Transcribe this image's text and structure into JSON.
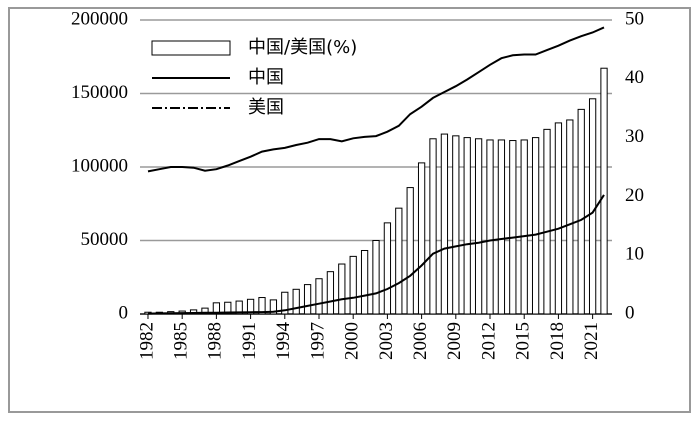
{
  "chart_data": {
    "type": "bar_line",
    "x": [
      1982,
      1983,
      1984,
      1985,
      1986,
      1987,
      1988,
      1989,
      1990,
      1991,
      1992,
      1993,
      1994,
      1995,
      1996,
      1997,
      1998,
      1999,
      2000,
      2001,
      2002,
      2003,
      2004,
      2005,
      2006,
      2007,
      2008,
      2009,
      2010,
      2011,
      2012,
      2013,
      2014,
      2015,
      2016,
      2017,
      2018,
      2019,
      2020,
      2021,
      2022
    ],
    "xlim": [
      1981.3,
      2022.7
    ],
    "xticks": [
      1982,
      1985,
      1988,
      1991,
      1994,
      1997,
      2000,
      2003,
      2006,
      2009,
      2012,
      2015,
      2018,
      2021
    ],
    "ylim": [
      0,
      200000
    ],
    "yticks": [
      0,
      50000,
      100000,
      150000,
      200000
    ],
    "y2lim": [
      0,
      50
    ],
    "y2ticks": [
      0,
      10,
      20,
      30,
      40,
      50
    ],
    "grid": true,
    "legend": "upper left",
    "series": [
      {
        "name": "中国/美国(%)",
        "kind": "bar",
        "axis": "y2",
        "color": "#000000",
        "values": [
          0.3,
          0.3,
          0.4,
          0.5,
          0.7,
          1.0,
          1.9,
          2.0,
          2.2,
          2.5,
          2.8,
          2.4,
          3.7,
          4.2,
          5.0,
          6.0,
          7.2,
          8.5,
          9.8,
          10.8,
          12.5,
          15.5,
          18.0,
          21.5,
          25.7,
          29.8,
          30.6,
          30.3,
          30.0,
          29.8,
          29.6,
          29.6,
          29.5,
          29.6,
          30.0,
          31.4,
          32.5,
          33.0,
          34.8,
          36.6,
          41.8
        ]
      },
      {
        "name": "中国",
        "kind": "line",
        "color": "#000000",
        "values": [
          300,
          400,
          500,
          600,
          700,
          800,
          900,
          1000,
          1100,
          1200,
          1300,
          1500,
          2500,
          4000,
          5500,
          7000,
          8500,
          10000,
          11000,
          12500,
          14000,
          17000,
          21000,
          26000,
          33000,
          41000,
          44500,
          46000,
          47500,
          48500,
          50000,
          51000,
          52000,
          53000,
          54000,
          56000,
          58000,
          61000,
          64000,
          69000,
          81000
        ]
      },
      {
        "name": "美国",
        "kind": "line",
        "color": "#000000",
        "dash": "10,3,2,3",
        "values": [
          97000,
          98500,
          100000,
          100000,
          99500,
          97500,
          98500,
          101000,
          104000,
          107000,
          110500,
          112000,
          113000,
          115000,
          116500,
          119000,
          119000,
          117500,
          119500,
          120500,
          121000,
          124000,
          128000,
          136000,
          141000,
          147000,
          151000,
          155000,
          159500,
          164500,
          169500,
          174000,
          176000,
          176500,
          176500,
          179500,
          182500,
          186000,
          189000,
          191500,
          195000
        ]
      }
    ]
  }
}
